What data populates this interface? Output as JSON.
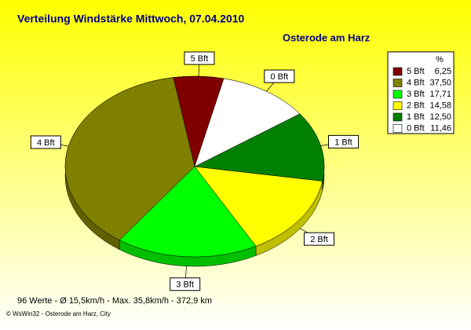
{
  "chart_data": {
    "type": "pie",
    "title": "Verteilung Windstärke  Mittwoch, 07.04.2010",
    "subtitle": "Osterode am Harz",
    "categories": [
      "5 Bft",
      "4 Bft",
      "3 Bft",
      "2 Bft",
      "1 Bft",
      "0 Bft"
    ],
    "values": [
      6.25,
      37.5,
      17.71,
      14.58,
      12.5,
      11.46
    ],
    "value_labels": [
      "6,25",
      "37,50",
      "17,71",
      "14,58",
      "12,50",
      "11,46"
    ],
    "colors": [
      "#800000",
      "#808000",
      "#00ff00",
      "#ffff00",
      "#008000",
      "#ffffff"
    ],
    "legend_title": "%",
    "legend": "top-right",
    "annotations": [
      "96 Werte   -   Ø 15,5km/h  -  Max. 35,8km/h   -   372,9 km",
      "© WsWin32  -  Osterode am Harz, City"
    ]
  }
}
